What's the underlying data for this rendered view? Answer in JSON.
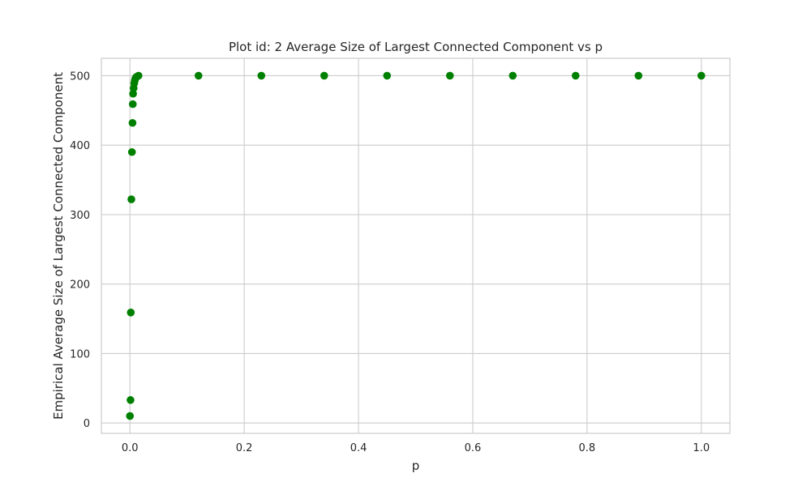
{
  "chart_data": {
    "type": "scatter",
    "title": "Plot id: 2 Average Size of Largest Connected Component vs p",
    "xlabel": "p",
    "ylabel": "Empirical Average Size of Largest Connected Component",
    "xlim": [
      -0.05,
      1.05
    ],
    "ylim": [
      -15,
      525
    ],
    "xticks": [
      0.0,
      0.2,
      0.4,
      0.6,
      0.8,
      1.0
    ],
    "xtick_labels": [
      "0.0",
      "0.2",
      "0.4",
      "0.6",
      "0.8",
      "1.0"
    ],
    "yticks": [
      0,
      100,
      200,
      300,
      400,
      500
    ],
    "ytick_labels": [
      "0",
      "100",
      "200",
      "300",
      "400",
      "500"
    ],
    "grid": true,
    "color": "#008000",
    "series": [
      {
        "points": [
          {
            "x": 0.0,
            "y": 10
          },
          {
            "x": 0.001,
            "y": 33
          },
          {
            "x": 0.0015,
            "y": 159
          },
          {
            "x": 0.0025,
            "y": 322
          },
          {
            "x": 0.0035,
            "y": 390
          },
          {
            "x": 0.0045,
            "y": 432
          },
          {
            "x": 0.005,
            "y": 459
          },
          {
            "x": 0.0055,
            "y": 474
          },
          {
            "x": 0.0065,
            "y": 482
          },
          {
            "x": 0.0075,
            "y": 489
          },
          {
            "x": 0.0085,
            "y": 493
          },
          {
            "x": 0.0095,
            "y": 496
          },
          {
            "x": 0.011,
            "y": 498
          },
          {
            "x": 0.013,
            "y": 499
          },
          {
            "x": 0.015,
            "y": 500
          },
          {
            "x": 0.12,
            "y": 500
          },
          {
            "x": 0.23,
            "y": 500
          },
          {
            "x": 0.34,
            "y": 500
          },
          {
            "x": 0.45,
            "y": 500
          },
          {
            "x": 0.56,
            "y": 500
          },
          {
            "x": 0.67,
            "y": 500
          },
          {
            "x": 0.78,
            "y": 500
          },
          {
            "x": 0.89,
            "y": 500
          },
          {
            "x": 1.0,
            "y": 500
          }
        ]
      }
    ]
  }
}
